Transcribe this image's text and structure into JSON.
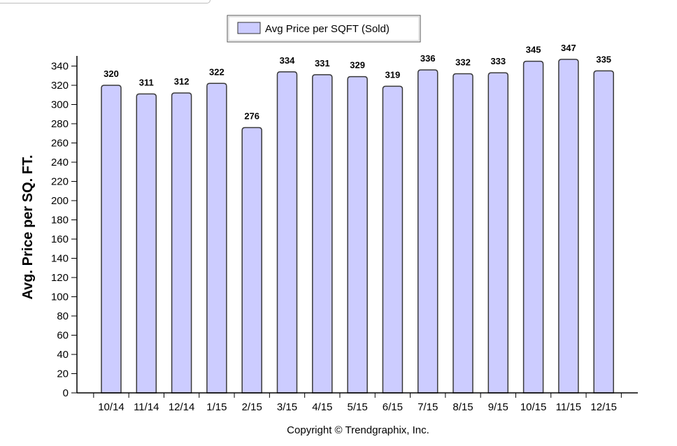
{
  "chart_data": {
    "type": "bar",
    "categories": [
      "10/14",
      "11/14",
      "12/14",
      "1/15",
      "2/15",
      "3/15",
      "4/15",
      "5/15",
      "6/15",
      "7/15",
      "8/15",
      "9/15",
      "10/15",
      "11/15",
      "12/15"
    ],
    "series": [
      {
        "name": "Avg Price per SQFT (Sold)",
        "values": [
          320,
          311,
          312,
          322,
          276,
          334,
          331,
          329,
          319,
          336,
          332,
          333,
          345,
          347,
          335
        ]
      }
    ],
    "xlabel": "",
    "ylabel": "Avg. Price per SQ. FT.",
    "ylim": [
      0,
      350
    ],
    "yticks": [
      0,
      20,
      40,
      60,
      80,
      100,
      120,
      140,
      160,
      180,
      200,
      220,
      240,
      260,
      280,
      300,
      320,
      340
    ],
    "legend_position": "top-center",
    "grid": false,
    "bar_fill": "#ccccff",
    "bar_stroke": "#3a3a3a"
  },
  "footer": {
    "copyright": "Copyright © Trendgraphix, Inc."
  }
}
